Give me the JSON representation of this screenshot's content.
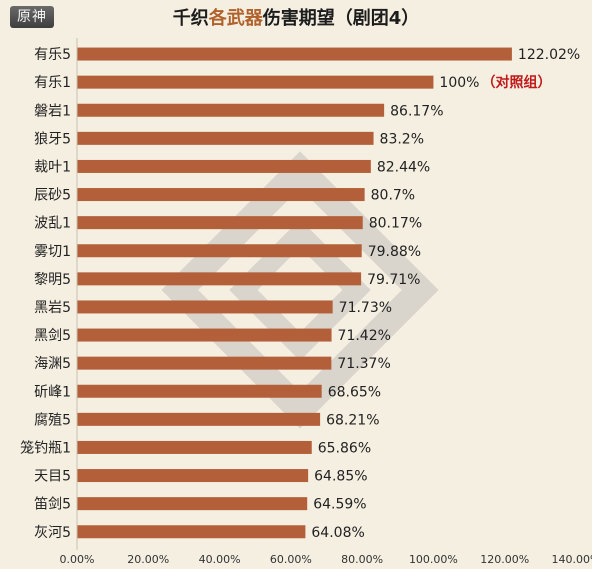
{
  "logo": "原神",
  "title": {
    "part1": "千织",
    "part2": "各武器",
    "part3": "伤害期望（剧团4）"
  },
  "colors": {
    "bar": "#b3603a",
    "highlight": "#b0612c",
    "note": "#c01a1a",
    "background": "#f5efe2"
  },
  "chart_data": {
    "type": "bar",
    "orientation": "horizontal",
    "title": "千织各武器伤害期望（剧团4）",
    "categories": [
      "有乐5",
      "有乐1",
      "磐岩1",
      "狼牙5",
      "裁叶1",
      "辰砂5",
      "波乱1",
      "雾切1",
      "黎明5",
      "黑岩5",
      "黑剑5",
      "海渊5",
      "斫峰1",
      "腐殖5",
      "笼钓瓶1",
      "天目5",
      "笛剑5",
      "灰河5"
    ],
    "values": [
      122.02,
      100,
      86.17,
      83.2,
      82.44,
      80.7,
      80.17,
      79.88,
      79.71,
      71.73,
      71.42,
      71.37,
      68.65,
      68.21,
      65.86,
      64.85,
      64.59,
      64.08
    ],
    "labels": [
      "122.02%",
      "100%",
      "86.17%",
      "83.2%",
      "82.44%",
      "80.7%",
      "80.17%",
      "79.88%",
      "79.71%",
      "71.73%",
      "71.42%",
      "71.37%",
      "68.65%",
      "68.21%",
      "65.86%",
      "64.85%",
      "64.59%",
      "64.08%"
    ],
    "annotations": [
      {
        "category": "有乐1",
        "text": "（对照组）"
      }
    ],
    "xlim": [
      0,
      140
    ],
    "xticks": [
      "0.00%",
      "20.00%",
      "40.00%",
      "60.00%",
      "80.00%",
      "100.00%",
      "120.00%",
      "140.00%"
    ],
    "grid": false,
    "legend": "none"
  }
}
